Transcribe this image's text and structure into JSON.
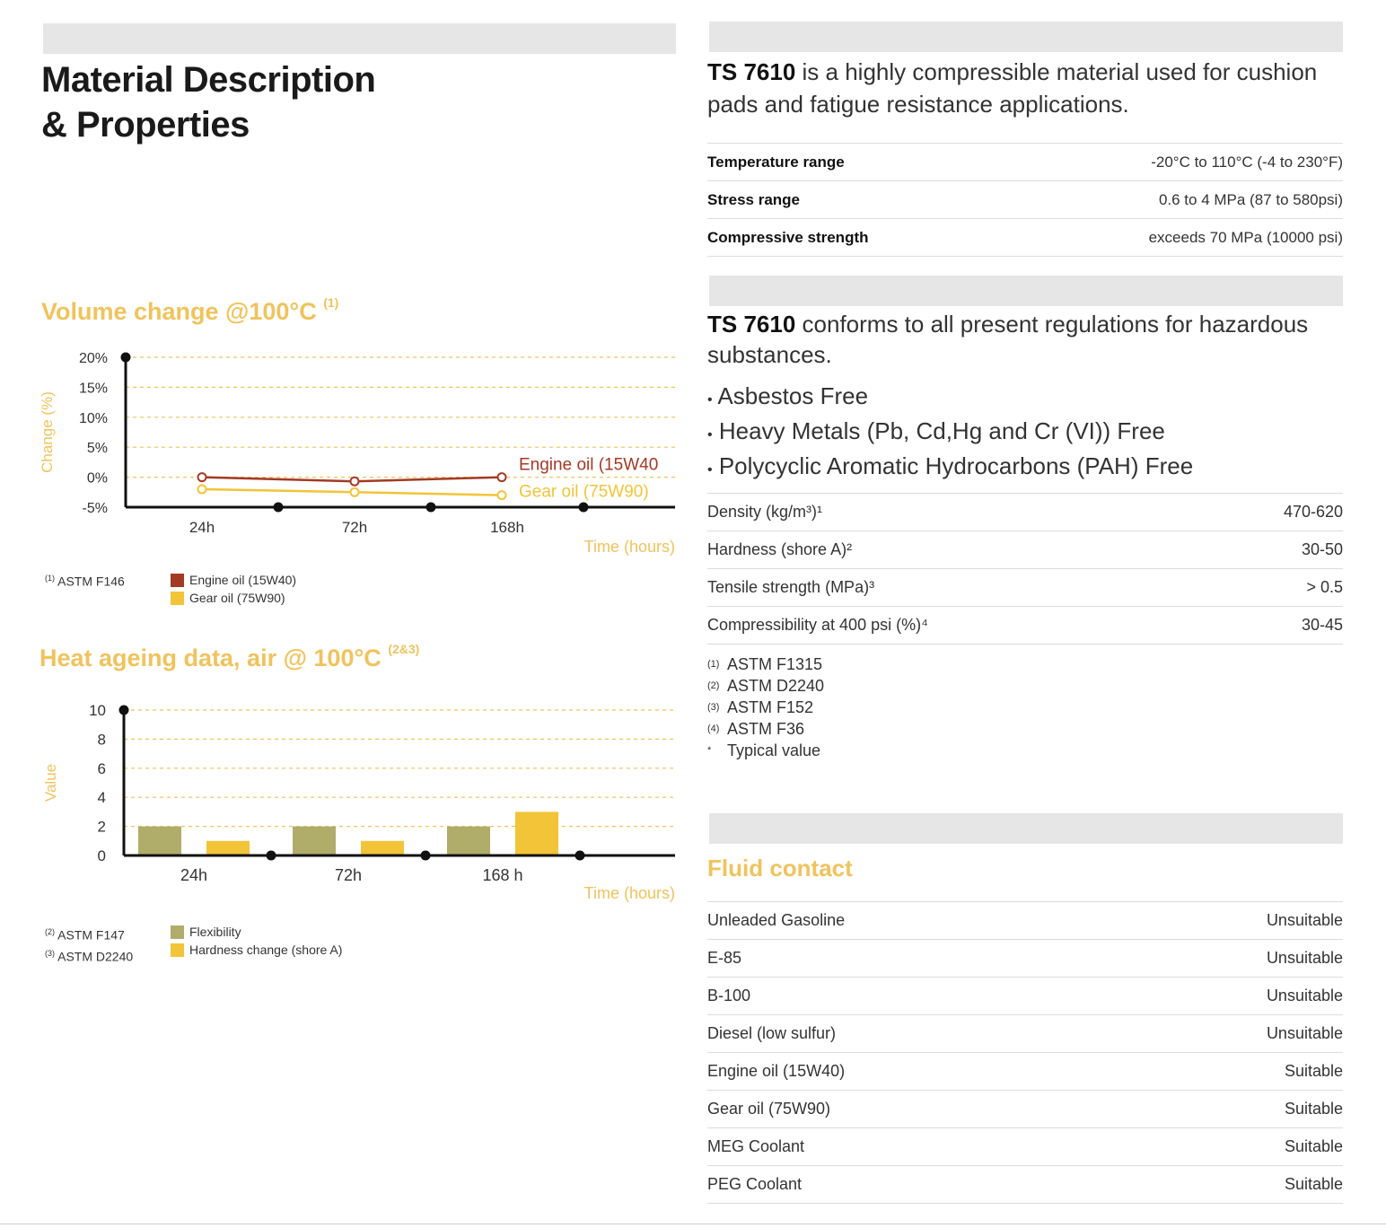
{
  "header": {
    "title_line1": "Material Description",
    "title_line2": "& Properties"
  },
  "volume_chart": {
    "title": "Volume change @100°C",
    "title_ref": "(1)",
    "footnote_marker": "(1)",
    "footnote": "ASTM F146",
    "legend": [
      {
        "label": "Engine oil (15W40)",
        "color": "#a33a24"
      },
      {
        "label": "Gear oil (75W90)",
        "color": "#f2c438"
      }
    ],
    "label_engine": "Engine oil (15W40",
    "label_gear": "Gear oil (75W90)"
  },
  "heat_chart": {
    "title": "Heat ageing data, air @ 100°C",
    "title_ref": "(2&3)",
    "footnotes": [
      {
        "marker": "(2)",
        "text": "ASTM F147"
      },
      {
        "marker": "(3)",
        "text": "ASTM D2240"
      }
    ],
    "legend": [
      {
        "label": "Flexibility",
        "color": "#b0ad6a"
      },
      {
        "label": "Hardness change (shore A)",
        "color": "#f2c438"
      }
    ]
  },
  "chart_data": [
    {
      "type": "line",
      "title": "Volume change @100°C",
      "xlabel": "Time (hours)",
      "ylabel": "Change (%)",
      "categories": [
        "24h",
        "72h",
        "168h"
      ],
      "x_tick_labels": [
        "24h",
        "72h",
        "168h"
      ],
      "y_ticks": [
        20,
        15,
        10,
        5,
        0,
        -5
      ],
      "y_tick_labels": [
        "20%",
        "15%",
        "10%",
        "5%",
        "0%",
        "-5%"
      ],
      "ylim": [
        -5,
        20
      ],
      "grid": true,
      "series": [
        {
          "name": "Engine oil (15W40)",
          "values": [
            0,
            -0.7,
            0
          ],
          "color": "#a33a24"
        },
        {
          "name": "Gear oil (75W90)",
          "values": [
            -2,
            -2.5,
            -3
          ],
          "color": "#f2c438"
        }
      ]
    },
    {
      "type": "bar",
      "title": "Heat ageing data, air @ 100°C",
      "xlabel": "Time (hours)",
      "ylabel": "Value",
      "categories": [
        "24h",
        "72h",
        "168 h"
      ],
      "y_ticks": [
        10,
        8,
        6,
        4,
        2,
        0
      ],
      "ylim": [
        0,
        10
      ],
      "grid": true,
      "series": [
        {
          "name": "Flexibility",
          "values": [
            2,
            2,
            2
          ],
          "color": "#b0ad6a"
        },
        {
          "name": "Hardness change (shore A)",
          "values": [
            1,
            1,
            3
          ],
          "color": "#f2c438"
        }
      ]
    }
  ],
  "intro": {
    "product": "TS 7610",
    "text": " is a highly compressible material used for cushion pads and fatigue resistance applications."
  },
  "ranges": [
    {
      "label": "Temperature range",
      "value": "-20°C to 110°C (-4 to 230°F)"
    },
    {
      "label": "Stress range",
      "value": "0.6 to 4 MPa (87 to 580psi)"
    },
    {
      "label": "Compressive strength",
      "value": "exceeds 70 MPa (10000 psi)"
    }
  ],
  "regulations": {
    "product": "TS 7610",
    "text": " conforms to all present regulations for hazardous substances.",
    "bullets": [
      "Asbestos Free",
      "Heavy Metals (Pb, Cd,Hg and Cr (VI)) Free",
      "Polycyclic Aromatic Hydrocarbons (PAH) Free"
    ]
  },
  "properties": [
    {
      "label": "Density (kg/m³)¹",
      "value": "470-620"
    },
    {
      "label": "Hardness (shore A)²",
      "value": "30-50"
    },
    {
      "label": "Tensile strength (MPa)³",
      "value": "> 0.5"
    },
    {
      "label": "Compressibility at 400 psi (%)⁴",
      "value": "30-45"
    }
  ],
  "property_notes": [
    {
      "marker": "(1)",
      "text": "ASTM F1315"
    },
    {
      "marker": "(2)",
      "text": "ASTM D2240"
    },
    {
      "marker": "(3)",
      "text": "ASTM F152"
    },
    {
      "marker": "(4)",
      "text": "ASTM F36"
    },
    {
      "marker": "*",
      "text": "Typical value"
    }
  ],
  "fluid_contact": {
    "title": "Fluid contact",
    "rows": [
      {
        "fluid": "Unleaded Gasoline",
        "rating": "Unsuitable"
      },
      {
        "fluid": "E-85",
        "rating": "Unsuitable"
      },
      {
        "fluid": "B-100",
        "rating": "Unsuitable"
      },
      {
        "fluid": "Diesel (low sulfur)",
        "rating": "Unsuitable"
      },
      {
        "fluid": "Engine oil (15W40)",
        "rating": "Suitable"
      },
      {
        "fluid": "Gear oil (75W90)",
        "rating": "Suitable"
      },
      {
        "fluid": "MEG Coolant",
        "rating": "Suitable"
      },
      {
        "fluid": "PEG Coolant",
        "rating": "Suitable"
      }
    ]
  }
}
